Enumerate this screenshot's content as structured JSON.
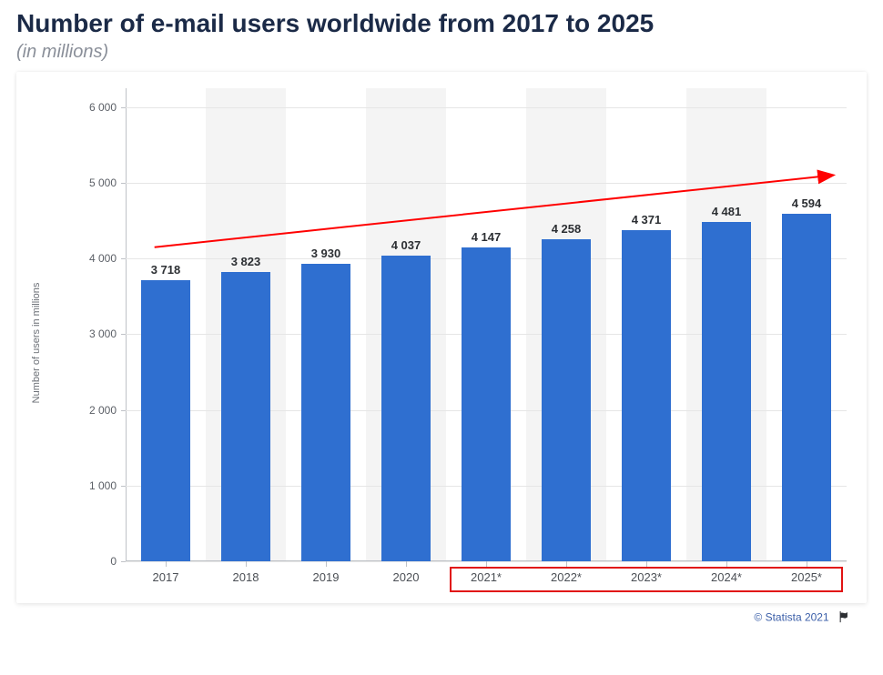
{
  "title": "Number of e-mail users worldwide from 2017 to 2025",
  "subtitle": "(in millions)",
  "chart": {
    "type": "bar",
    "yaxis_title": "Number of users in millions",
    "categories": [
      "2017",
      "2018",
      "2019",
      "2020",
      "2021*",
      "2022*",
      "2023*",
      "2024*",
      "2025*"
    ],
    "values": [
      3718,
      3823,
      3930,
      4037,
      4147,
      4258,
      4371,
      4481,
      4594
    ],
    "value_labels": [
      "3 718",
      "3 823",
      "3 930",
      "4 037",
      "4 147",
      "4 258",
      "4 371",
      "4 481",
      "4 594"
    ],
    "bar_color": "#2f6fd0",
    "ylim": [
      0,
      6250
    ],
    "yticks": [
      0,
      1000,
      2000,
      3000,
      4000,
      5000,
      6000
    ],
    "ytick_labels": [
      "0",
      "1 000",
      "2 000",
      "3 000",
      "4 000",
      "5 000",
      "6 000"
    ],
    "alt_background_color": "#f4f4f4",
    "grid_color": "#e6e6e6",
    "background_color": "#ffffff",
    "title_color": "#1b2a47",
    "title_fontsize": 28,
    "subtitle_color": "#8a8f99",
    "subtitle_fontsize": 20,
    "label_fontsize": 13,
    "tick_fontsize": 12,
    "trend_arrow": {
      "color": "#ff0000",
      "x1_pct": 4,
      "y1_val": 4150,
      "x2_pct": 98,
      "y2_val": 5100
    },
    "highlight_box": {
      "color": "#e11313",
      "from_index": 4,
      "to_index": 8
    }
  },
  "footer": {
    "copyright": "© Statista 2021"
  }
}
